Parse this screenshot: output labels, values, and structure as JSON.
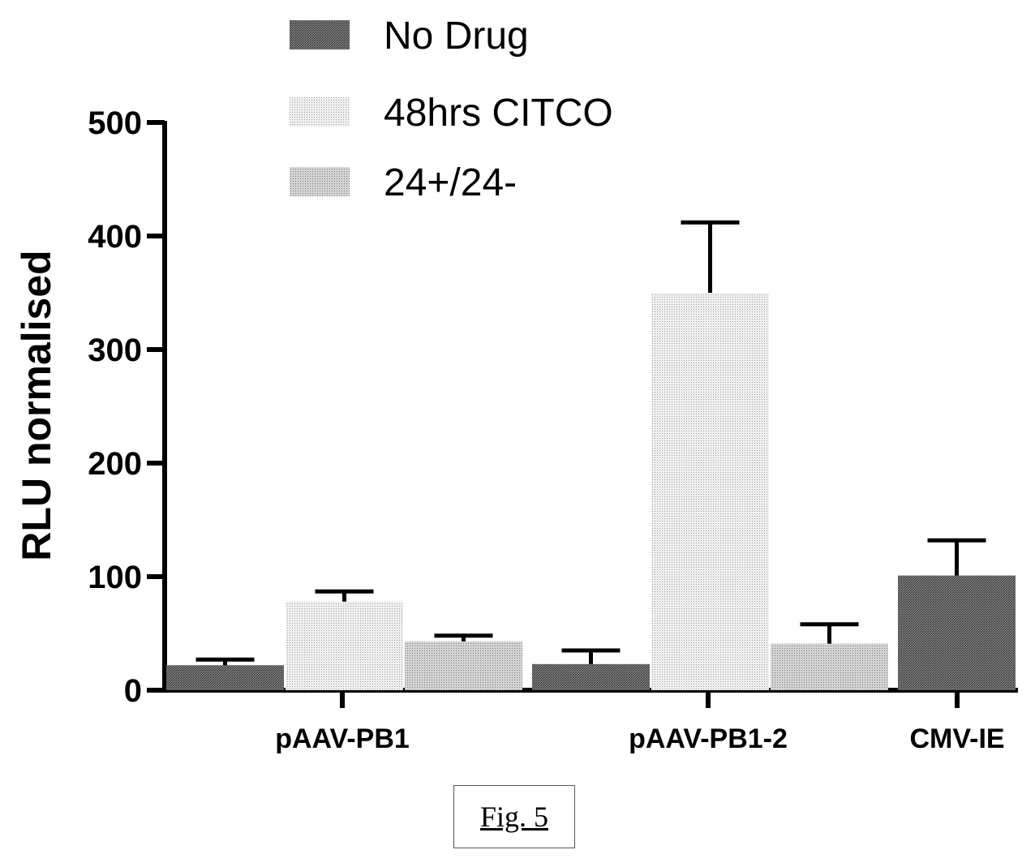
{
  "caption": "Fig. 5",
  "chart_data": {
    "type": "bar",
    "title": "",
    "xlabel": "",
    "ylabel": "RLU normalised",
    "ylim": [
      0,
      500
    ],
    "yticks": [
      0,
      100,
      200,
      300,
      400,
      500
    ],
    "yticks_labels": [
      "0",
      "100",
      "200",
      "300",
      "400",
      "500"
    ],
    "grid": false,
    "legend_position": "top-center",
    "categories": [
      "pAAV-PB1",
      "pAAV-PB1-2",
      "CMV-IE"
    ],
    "series": [
      {
        "name": "No Drug",
        "pattern": "dense",
        "values": [
          22,
          23,
          101
        ],
        "errors": [
          5,
          12,
          31
        ]
      },
      {
        "name": "48hrs CITCO",
        "pattern": "light",
        "values": [
          78,
          350,
          null
        ],
        "errors": [
          9,
          62,
          null
        ]
      },
      {
        "name": "24+/24-",
        "pattern": "medium",
        "values": [
          43,
          41,
          null
        ],
        "errors": [
          5,
          17,
          null
        ]
      }
    ]
  }
}
